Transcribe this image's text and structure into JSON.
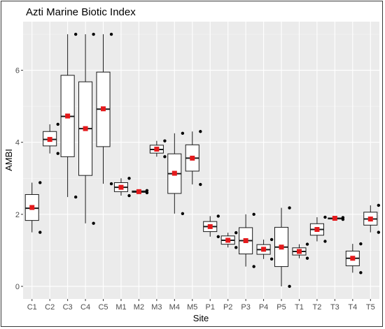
{
  "chart_data": {
    "type": "boxplot",
    "title": "Azti Marine Biotic Index",
    "xlabel": "Site",
    "ylabel": "AMBI",
    "ylim": [
      -0.35,
      7.35
    ],
    "yticks": [
      0,
      2,
      4,
      6
    ],
    "grid": true,
    "background": "#ebebeb",
    "categories": [
      "C1",
      "C2",
      "C3",
      "C4",
      "C5",
      "M1",
      "M2",
      "M3",
      "M4",
      "M5",
      "P1",
      "P2",
      "P3",
      "P4",
      "P5",
      "T1",
      "T2",
      "T3",
      "T4",
      "T5"
    ],
    "boxes": [
      {
        "site": "C1",
        "min": 1.5,
        "q1": 1.83,
        "median": 2.17,
        "q3": 2.55,
        "max": 2.88,
        "mean": 2.19,
        "points": [
          1.5,
          2.88
        ]
      },
      {
        "site": "C2",
        "min": 3.69,
        "q1": 3.9,
        "median": 4.08,
        "q3": 4.3,
        "max": 4.5,
        "mean": 4.08,
        "points": [
          3.69,
          4.5
        ]
      },
      {
        "site": "C3",
        "min": 2.48,
        "q1": 3.6,
        "median": 4.72,
        "q3": 5.86,
        "max": 7.0,
        "mean": 4.73,
        "points": [
          2.48,
          7.0
        ]
      },
      {
        "site": "C4",
        "min": 1.75,
        "q1": 3.08,
        "median": 4.38,
        "q3": 5.68,
        "max": 7.0,
        "mean": 4.38,
        "points": [
          1.75,
          7.0
        ]
      },
      {
        "site": "C5",
        "min": 2.85,
        "q1": 3.88,
        "median": 4.92,
        "q3": 5.95,
        "max": 7.0,
        "mean": 4.93,
        "points": [
          2.85,
          7.0
        ]
      },
      {
        "site": "M1",
        "min": 2.52,
        "q1": 2.63,
        "median": 2.75,
        "q3": 2.88,
        "max": 3.0,
        "mean": 2.75,
        "points": [
          2.52,
          3.0
        ]
      },
      {
        "site": "M2",
        "min": 2.6,
        "q1": 2.61,
        "median": 2.63,
        "q3": 2.65,
        "max": 2.66,
        "mean": 2.63,
        "points": [
          2.6,
          2.66
        ]
      },
      {
        "site": "M3",
        "min": 3.6,
        "q1": 3.7,
        "median": 3.8,
        "q3": 3.92,
        "max": 4.04,
        "mean": 3.81,
        "points": [
          3.6,
          4.04
        ]
      },
      {
        "site": "M4",
        "min": 2.02,
        "q1": 2.58,
        "median": 3.13,
        "q3": 3.68,
        "max": 4.25,
        "mean": 3.14,
        "points": [
          2.02,
          4.25
        ]
      },
      {
        "site": "M5",
        "min": 2.83,
        "q1": 3.2,
        "median": 3.56,
        "q3": 3.93,
        "max": 4.3,
        "mean": 3.56,
        "points": [
          2.83,
          4.3
        ]
      },
      {
        "site": "P1",
        "min": 1.38,
        "q1": 1.52,
        "median": 1.66,
        "q3": 1.8,
        "max": 1.95,
        "mean": 1.66,
        "points": [
          1.38,
          1.95
        ]
      },
      {
        "site": "P2",
        "min": 1.08,
        "q1": 1.17,
        "median": 1.28,
        "q3": 1.4,
        "max": 1.49,
        "mean": 1.28,
        "points": [
          1.08,
          1.49
        ]
      },
      {
        "site": "P3",
        "min": 0.55,
        "q1": 0.9,
        "median": 1.27,
        "q3": 1.63,
        "max": 2.0,
        "mean": 1.27,
        "points": [
          0.55,
          2.0
        ]
      },
      {
        "site": "P4",
        "min": 0.76,
        "q1": 0.89,
        "median": 1.02,
        "q3": 1.16,
        "max": 1.3,
        "mean": 1.03,
        "points": [
          0.76,
          1.3
        ]
      },
      {
        "site": "P5",
        "min": 0.0,
        "q1": 0.55,
        "median": 1.09,
        "q3": 1.64,
        "max": 2.18,
        "mean": 1.09,
        "points": [
          0.0,
          2.18
        ]
      },
      {
        "site": "T1",
        "min": 0.78,
        "q1": 0.87,
        "median": 0.97,
        "q3": 1.07,
        "max": 1.17,
        "mean": 0.97,
        "points": [
          0.78,
          1.17
        ]
      },
      {
        "site": "T2",
        "min": 1.25,
        "q1": 1.42,
        "median": 1.58,
        "q3": 1.74,
        "max": 1.92,
        "mean": 1.58,
        "points": [
          1.25,
          1.92
        ]
      },
      {
        "site": "T3",
        "min": 1.86,
        "q1": 1.87,
        "median": 1.88,
        "q3": 1.9,
        "max": 1.91,
        "mean": 1.89,
        "points": [
          1.86,
          1.91
        ]
      },
      {
        "site": "T4",
        "min": 0.38,
        "q1": 0.57,
        "median": 0.78,
        "q3": 0.98,
        "max": 1.18,
        "mean": 0.78,
        "points": [
          0.38,
          1.18
        ]
      },
      {
        "site": "T5",
        "min": 1.5,
        "q1": 1.7,
        "median": 1.87,
        "q3": 2.06,
        "max": 2.25,
        "mean": 1.87,
        "points": [
          1.5,
          2.25
        ]
      }
    ],
    "colors": {
      "box_fill": "#ffffff",
      "box_stroke": "#1a1a1a",
      "mean_marker": "#e41a1c",
      "point": "#000000",
      "grid_major": "#ffffff",
      "grid_minor": "#f5f5f5"
    }
  }
}
